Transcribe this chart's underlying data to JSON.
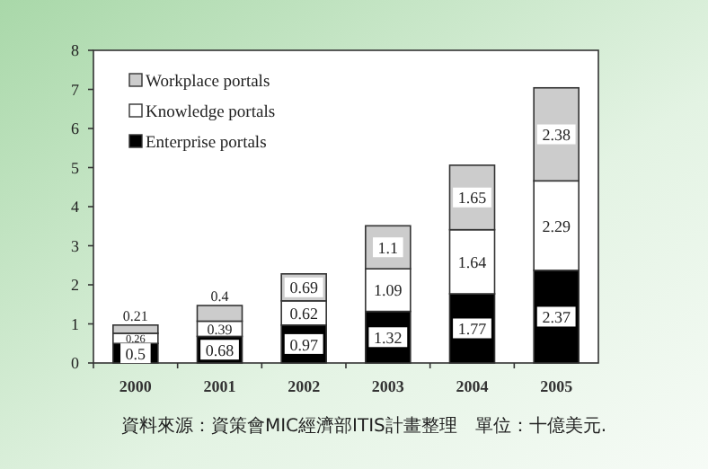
{
  "chart_data": {
    "type": "bar",
    "stacked": true,
    "data_labels": true,
    "legend": "top left",
    "categories": [
      "2000",
      "2001",
      "2002",
      "2003",
      "2004",
      "2005"
    ],
    "ylim": [
      0,
      8
    ],
    "yticks": [
      0,
      1,
      2,
      3,
      4,
      5,
      6,
      7,
      8
    ],
    "series": [
      {
        "name": "Enterprise portals",
        "color": "#000000",
        "values": [
          0.5,
          0.68,
          0.97,
          1.32,
          1.77,
          2.37
        ]
      },
      {
        "name": "Knowledge portals",
        "color": "#ffffff",
        "values": [
          0.26,
          0.39,
          0.62,
          1.09,
          1.64,
          2.29
        ]
      },
      {
        "name": "Workplace portals",
        "color": "#cccccc",
        "values": [
          0.21,
          0.4,
          0.69,
          1.1,
          1.65,
          2.38
        ]
      }
    ],
    "annotations": [
      "資料來源：資策會MIC經濟部ITIS計畫整理　單位：十億美元."
    ]
  }
}
